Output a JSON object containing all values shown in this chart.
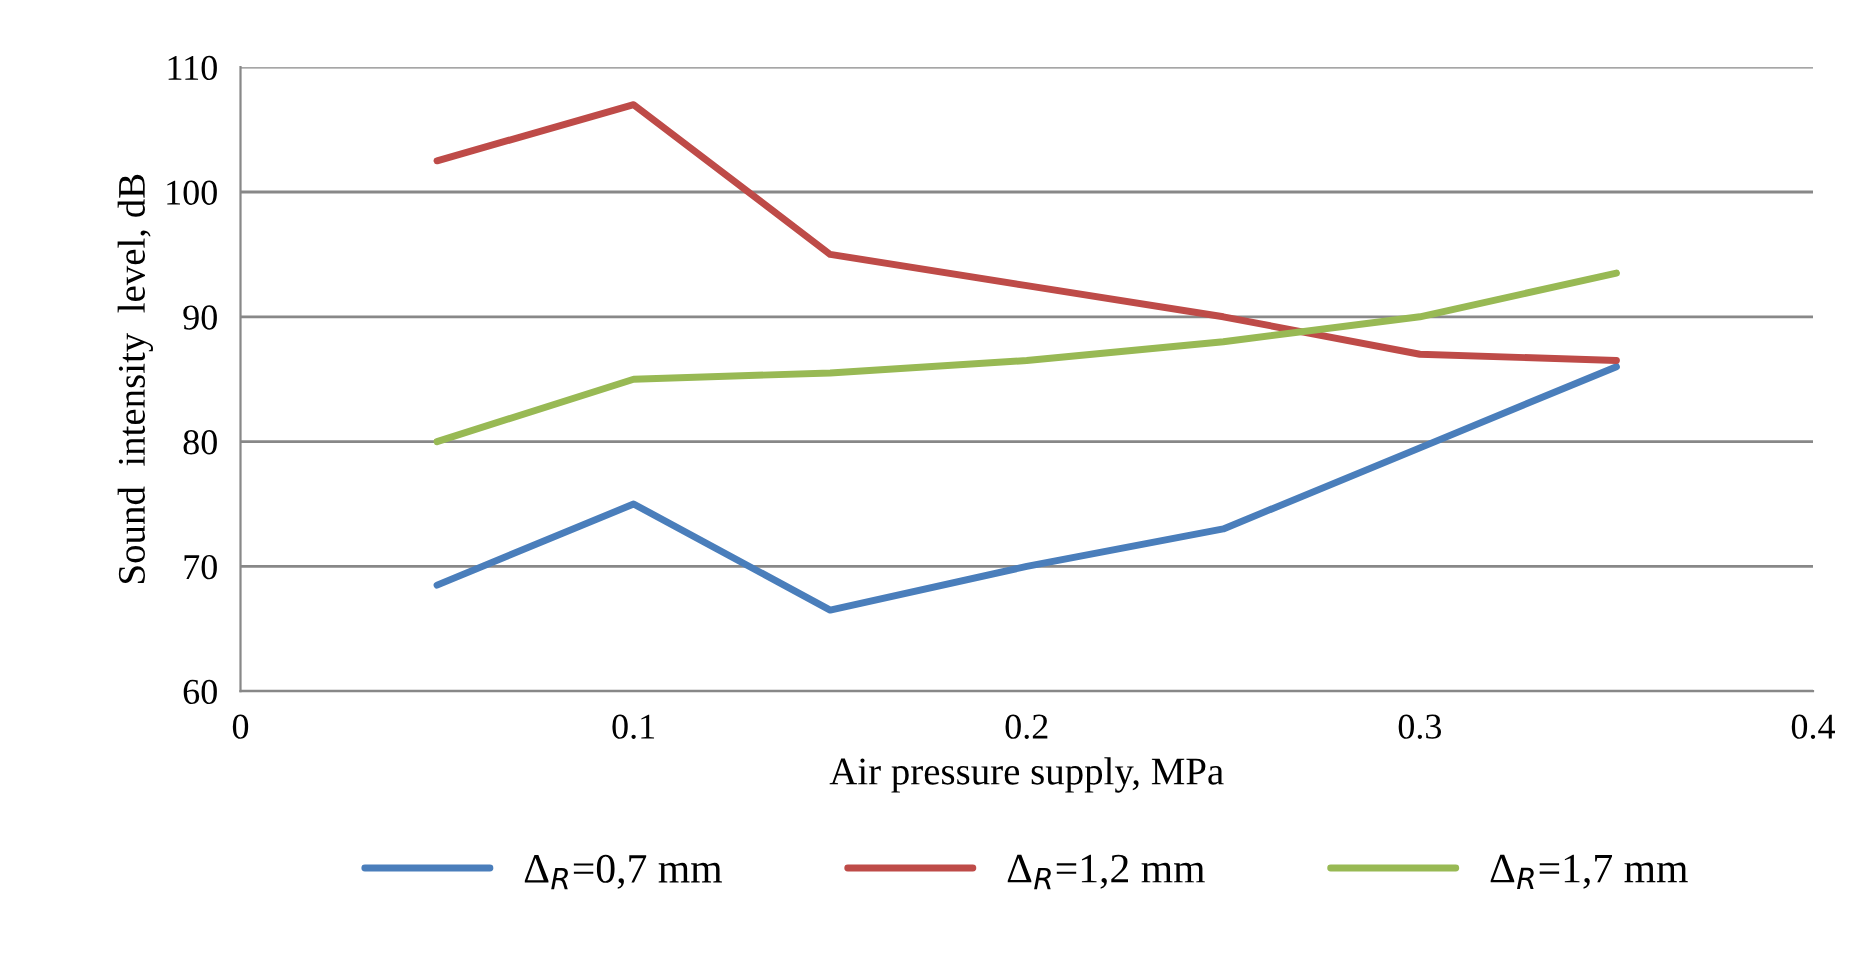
{
  "chart_data": {
    "type": "line",
    "xlabel": "Air pressure supply, MPa",
    "ylabel": "Sound  intensity  level, dB",
    "x": [
      0.05,
      0.1,
      0.15,
      0.2,
      0.25,
      0.3,
      0.35
    ],
    "series": [
      {
        "name": "Δ$_{R}$=0,7 mm",
        "color": "#4a7ebb",
        "values": [
          68.5,
          75,
          66.5,
          70,
          73,
          79.5,
          86
        ]
      },
      {
        "name": "Δ$_{R}$=1,2 mm",
        "color": "#be4b48",
        "values": [
          102.5,
          107,
          95,
          92.5,
          90,
          87,
          86.5
        ]
      },
      {
        "name": "Δ$_{R}$=1,7 mm",
        "color": "#98b954",
        "values": [
          80,
          85,
          85.5,
          86.5,
          88,
          90,
          93.5
        ]
      }
    ],
    "xlim": [
      0,
      0.4
    ],
    "xticks": [
      {
        "value": 0,
        "label": "0"
      },
      0.1,
      0.2,
      0.3,
      0.4
    ],
    "ylim": [
      60,
      110
    ],
    "yticks": [
      60,
      70,
      80,
      90,
      100,
      110
    ],
    "grid": "y",
    "legend": "bottom",
    "marker": "none",
    "line_style": "solid"
  }
}
